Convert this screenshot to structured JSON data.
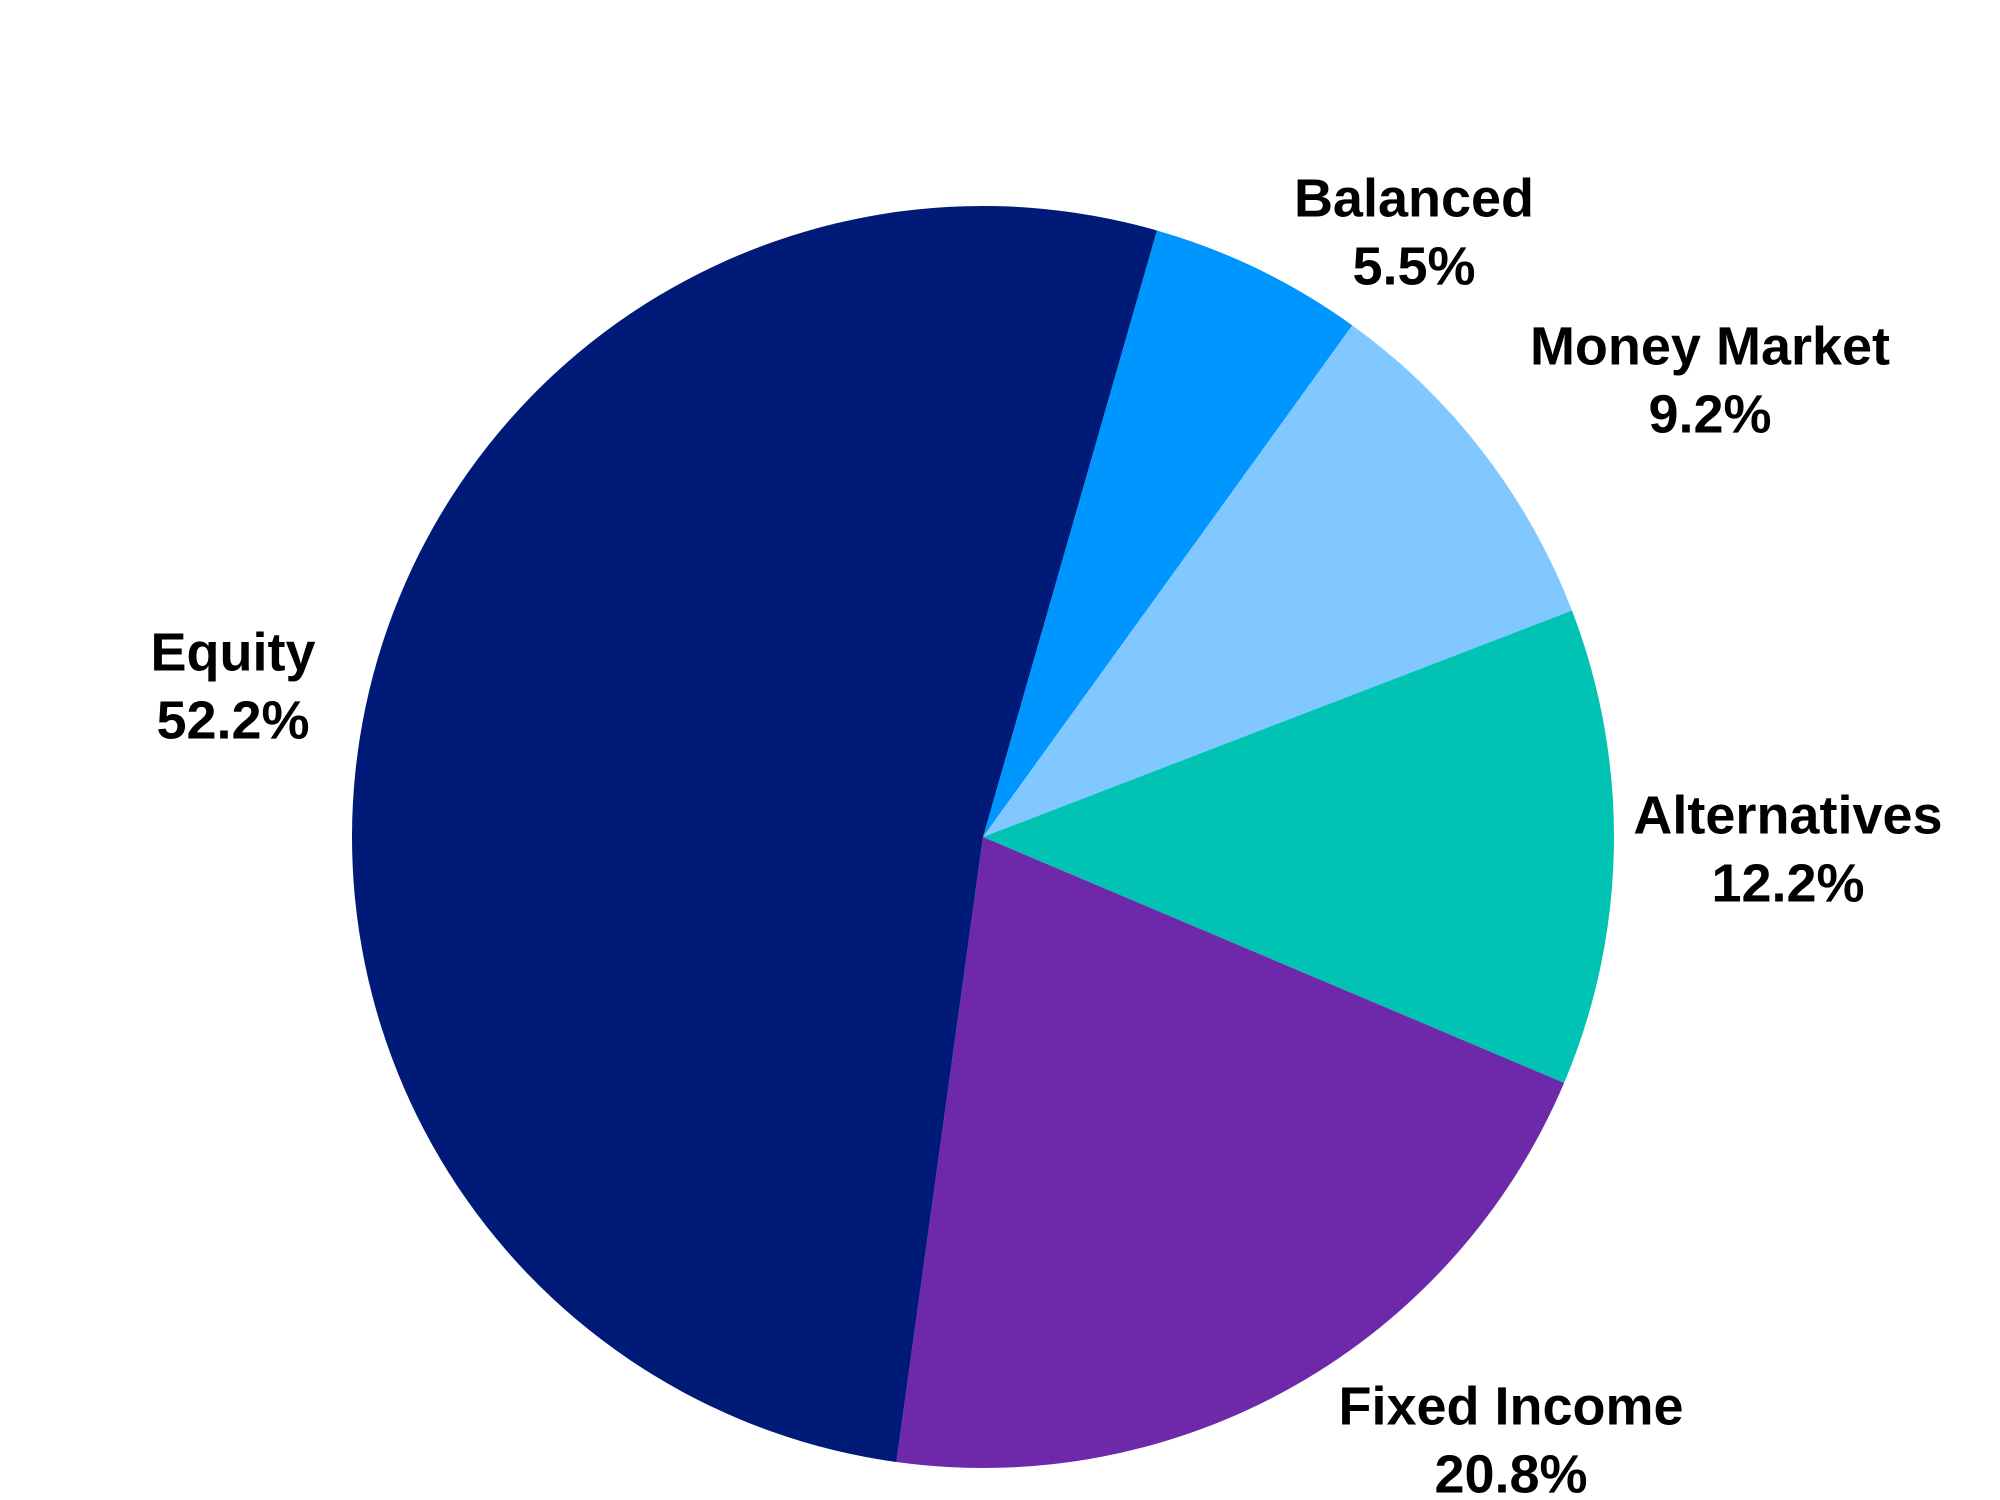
{
  "chart_data": {
    "type": "pie",
    "categories": [
      "Balanced",
      "Money Market",
      "Alternatives",
      "Fixed Income",
      "Equity"
    ],
    "values": [
      5.5,
      9.2,
      12.2,
      20.8,
      52.2
    ],
    "value_labels": [
      "5.5%",
      "9.2%",
      "12.2%",
      "20.8%",
      "52.2%"
    ],
    "colors": [
      "#0096ff",
      "#80c8ff",
      "#00c3b4",
      "#6e28aa",
      "#001a78"
    ]
  }
}
